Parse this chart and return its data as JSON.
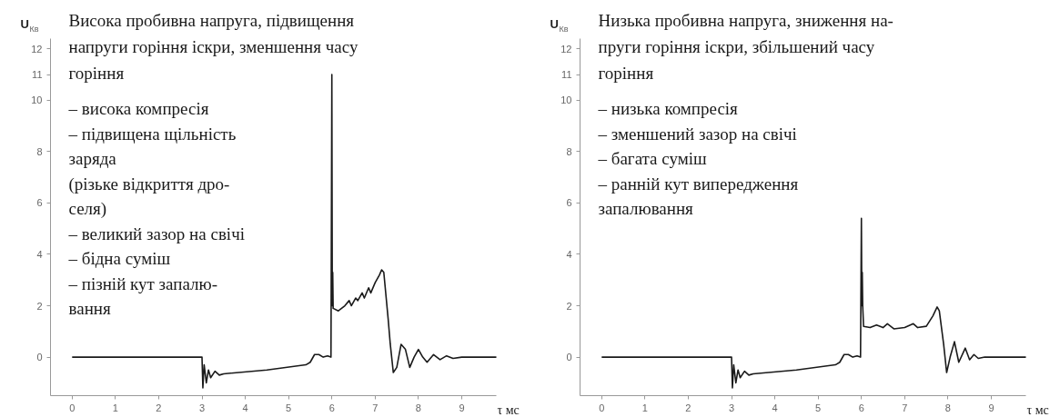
{
  "chart_data": [
    {
      "type": "line",
      "title": "Висока пробивна напруга, підвищення\nнапруги горіння іскри, зменшення часу\nгоріння",
      "xlabel": "τ мс",
      "ylabel": "U$_{Кв}$",
      "color": "#1a1a1a",
      "grid": false,
      "annotations": [
        "– висока компресія\n– підвищена щільність\nзаряда\n  (різьке відкриття дро-\nселя)\n– великий зазор на свічі\n– бідна суміш\n– пізній кут запалю-\nвання"
      ],
      "xlim": [
        -0.5,
        9.8
      ],
      "ylim": [
        -1.5,
        12.4
      ],
      "xticks": [
        0,
        1,
        2,
        3,
        4,
        5,
        6,
        7,
        8,
        9
      ],
      "yticks": [
        0,
        2,
        4,
        6,
        8,
        10,
        11,
        12
      ],
      "x": [
        0,
        3,
        3.02,
        3.05,
        3.1,
        3.15,
        3.2,
        3.3,
        3.4,
        3.5,
        4.5,
        5.4,
        5.5,
        5.6,
        5.7,
        5.8,
        5.9,
        5.98,
        6.0,
        6.01,
        6.02,
        6.03,
        6.15,
        6.3,
        6.4,
        6.45,
        6.55,
        6.6,
        6.7,
        6.75,
        6.85,
        6.9,
        7.0,
        7.1,
        7.15,
        7.2,
        7.3,
        7.35,
        7.42,
        7.5,
        7.6,
        7.7,
        7.8,
        7.9,
        8.0,
        8.1,
        8.2,
        8.35,
        8.5,
        8.65,
        8.8,
        9.0,
        9.8
      ],
      "values": [
        0,
        0,
        -1.2,
        -0.3,
        -1.0,
        -0.5,
        -0.8,
        -0.55,
        -0.7,
        -0.65,
        -0.5,
        -0.3,
        -0.2,
        0.1,
        0.1,
        0.0,
        0.05,
        0.0,
        11.0,
        2.0,
        3.3,
        1.9,
        1.8,
        2.0,
        2.2,
        2.0,
        2.3,
        2.2,
        2.5,
        2.3,
        2.7,
        2.5,
        2.9,
        3.2,
        3.4,
        3.3,
        1.5,
        0.5,
        -0.6,
        -0.4,
        0.5,
        0.3,
        -0.4,
        0.0,
        0.3,
        0.0,
        -0.2,
        0.1,
        -0.1,
        0.05,
        -0.05,
        0.0,
        0.0
      ]
    },
    {
      "type": "line",
      "title": "Низька пробивна напруга, зниження на-\nпруги горіння іскри, збільшений часу\nгоріння",
      "xlabel": "τ мс",
      "ylabel": "U$_{Кв}$",
      "color": "#1a1a1a",
      "grid": false,
      "annotations": [
        "– низька компресія\n– зменшений  зазор на свічі\n– багата суміш\n– ранній кут випередження\n   запалювання"
      ],
      "xlim": [
        -0.5,
        9.8
      ],
      "ylim": [
        -1.5,
        12.4
      ],
      "xticks": [
        0,
        1,
        2,
        3,
        4,
        5,
        6,
        7,
        8,
        9
      ],
      "yticks": [
        0,
        2,
        4,
        6,
        8,
        10,
        11,
        12
      ],
      "x": [
        0,
        3,
        3.02,
        3.05,
        3.1,
        3.15,
        3.2,
        3.3,
        3.4,
        3.5,
        4.5,
        5.4,
        5.5,
        5.6,
        5.7,
        5.8,
        5.9,
        5.98,
        6.0,
        6.01,
        6.02,
        6.03,
        6.05,
        6.2,
        6.35,
        6.5,
        6.6,
        6.75,
        7.0,
        7.2,
        7.3,
        7.5,
        7.65,
        7.75,
        7.8,
        7.9,
        7.97,
        8.05,
        8.15,
        8.25,
        8.4,
        8.5,
        8.6,
        8.7,
        8.85,
        9.8
      ],
      "values": [
        0,
        0,
        -1.2,
        -0.3,
        -1.0,
        -0.5,
        -0.8,
        -0.55,
        -0.7,
        -0.65,
        -0.5,
        -0.3,
        -0.2,
        0.1,
        0.1,
        0.0,
        0.05,
        0.0,
        5.4,
        2.0,
        3.3,
        2.0,
        1.2,
        1.15,
        1.25,
        1.15,
        1.3,
        1.1,
        1.15,
        1.3,
        1.15,
        1.2,
        1.6,
        1.95,
        1.8,
        0.5,
        -0.6,
        0.0,
        0.6,
        -0.2,
        0.35,
        -0.1,
        0.1,
        -0.05,
        0.0,
        0.0
      ]
    }
  ]
}
